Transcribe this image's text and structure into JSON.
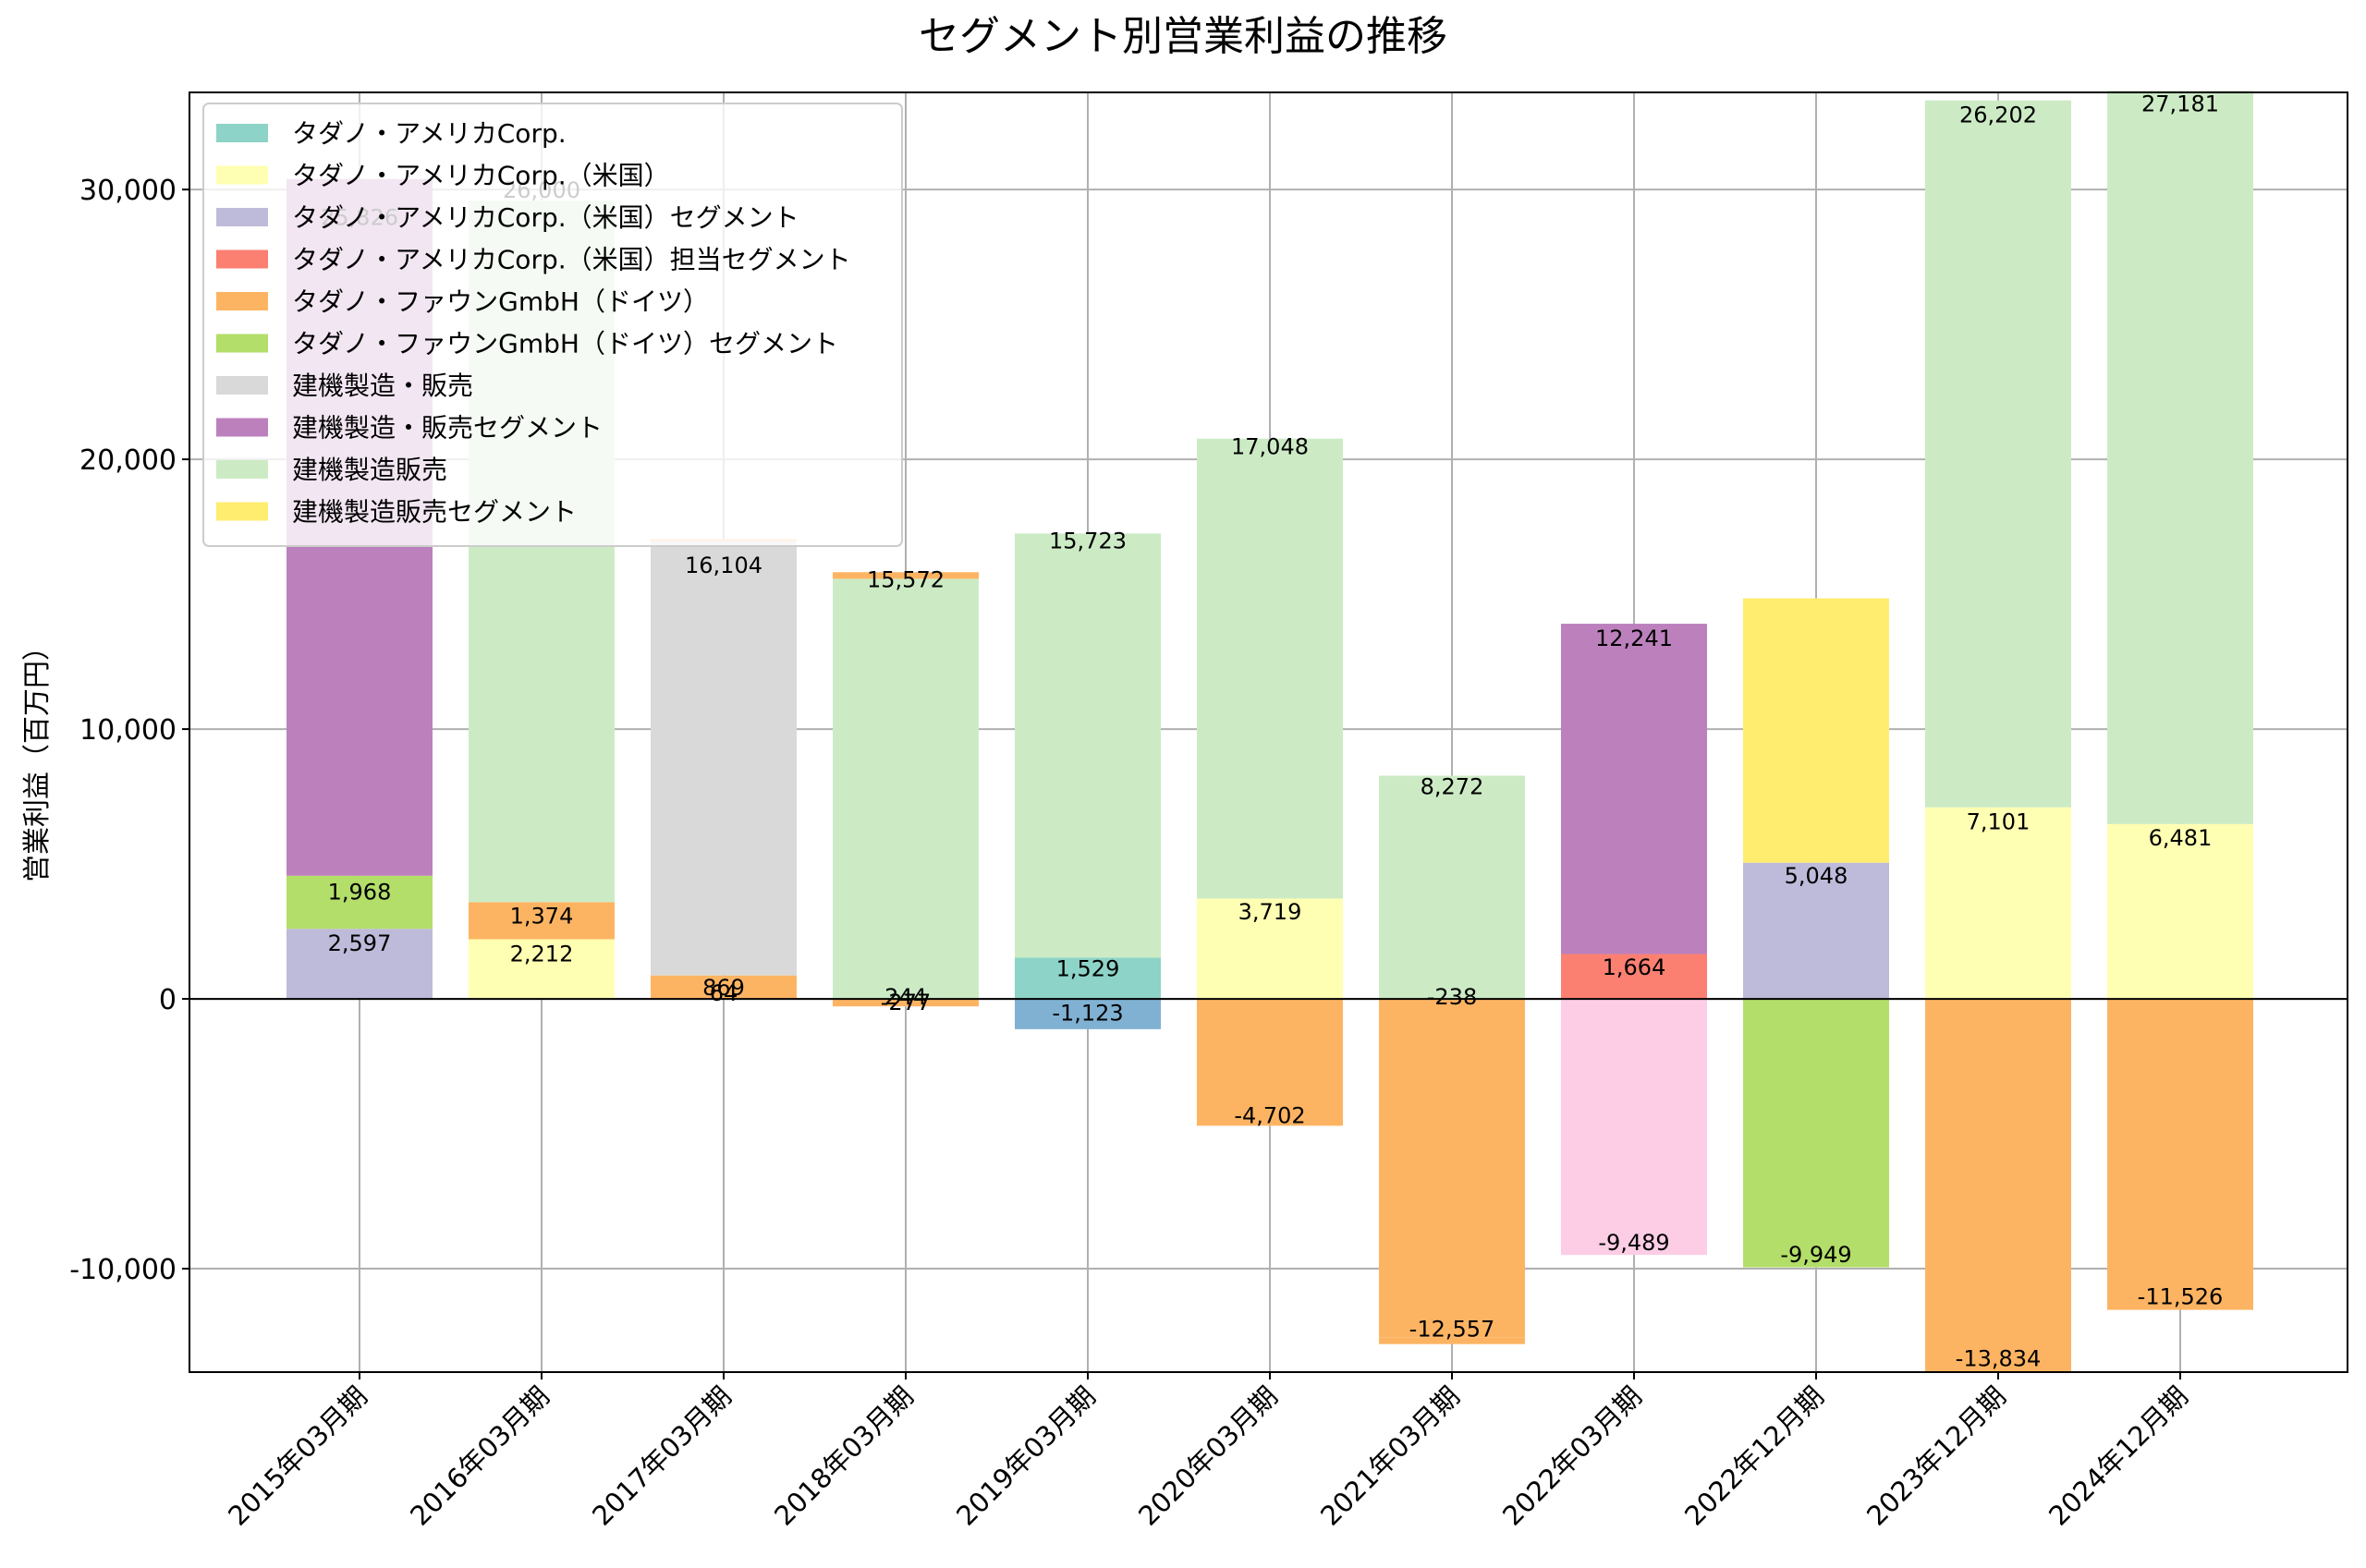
{
  "chart_data": {
    "type": "bar",
    "stacked": true,
    "title": "セグメント別営業利益の推移",
    "xlabel": "",
    "ylabel": "営業利益（百万円）",
    "ylim": [
      -13834,
      33600
    ],
    "yticks": [
      -10000,
      0,
      10000,
      20000,
      30000
    ],
    "ytick_labels": [
      "-10,000",
      "0",
      "10,000",
      "20,000",
      "30,000"
    ],
    "grid": true,
    "legend_position": "top-left",
    "categories": [
      "2015年03月期",
      "2016年03月期",
      "2017年03月期",
      "2018年03月期",
      "2019年03月期",
      "2020年03月期",
      "2021年03月期",
      "2022年03月期",
      "2022年12月期",
      "2023年12月期",
      "2024年12月期"
    ],
    "series": [
      {
        "name": "タダノ・アメリカCorp.",
        "color": "#8dd3c7",
        "values": [
          null,
          null,
          null,
          null,
          1529,
          null,
          null,
          null,
          null,
          null,
          null
        ]
      },
      {
        "name": "タダノ・アメリカCorp.（米国）",
        "color": "#ffffb3",
        "values": [
          null,
          2212,
          null,
          null,
          null,
          3719,
          null,
          null,
          null,
          7101,
          6481
        ]
      },
      {
        "name": "タダノ・アメリカCorp.（米国）セグメント",
        "color": "#bebada",
        "values": [
          2597,
          null,
          null,
          null,
          null,
          null,
          null,
          null,
          5048,
          null,
          null
        ]
      },
      {
        "name": "タダノ・アメリカCorp.（米国）担当セグメント",
        "color": "#fb8072",
        "values": [
          null,
          null,
          null,
          null,
          null,
          null,
          null,
          1664,
          null,
          null,
          null
        ]
      },
      {
        "name": "タダノ・ファウンGmbH（ドイツ）",
        "color": "#fdb462",
        "values": [
          null,
          1374,
          869,
          -277,
          null,
          -4702,
          -12557,
          null,
          null,
          -13834,
          -11526
        ]
      },
      {
        "name": "タダノ・ファウンGmbH（ドイツ）セグメント",
        "color": "#b3de69",
        "values": [
          1968,
          null,
          null,
          null,
          null,
          null,
          null,
          null,
          -9949,
          null,
          null
        ]
      },
      {
        "name": "建機製造・販売",
        "color": "#d9d9d9",
        "values": [
          null,
          null,
          16104,
          null,
          null,
          null,
          null,
          null,
          null,
          null,
          null
        ]
      },
      {
        "name": "建機製造・販売セグメント",
        "color": "#bc80bd",
        "values": [
          25826,
          null,
          null,
          null,
          null,
          null,
          null,
          12241,
          null,
          null,
          null
        ]
      },
      {
        "name": "建機製造販売",
        "color": "#ccebc5",
        "values": [
          null,
          26000,
          null,
          15572,
          15723,
          17048,
          8272,
          null,
          null,
          26202,
          27181
        ]
      },
      {
        "name": "建機製造販売セグメント",
        "color": "#ffed6f",
        "values": [
          null,
          null,
          null,
          null,
          null,
          null,
          null,
          null,
          9800,
          null,
          null
        ]
      },
      {
        "name": "",
        "color": "#80b1d3",
        "values": [
          null,
          null,
          null,
          null,
          -1123,
          null,
          null,
          null,
          null,
          null,
          null
        ]
      },
      {
        "name": "",
        "color": "#fccde5",
        "values": [
          null,
          null,
          null,
          null,
          null,
          null,
          null,
          -9489,
          null,
          null,
          null
        ]
      },
      {
        "name": "",
        "color": "#fdb462",
        "values": [
          null,
          null,
          64,
          244,
          null,
          null,
          -238,
          null,
          null,
          null,
          null
        ]
      }
    ],
    "data_labels": [
      {
        "category_index": 0,
        "text": "25,826",
        "y": 29000
      },
      {
        "category_index": 0,
        "text": "1,968",
        "y": 4000
      },
      {
        "category_index": 0,
        "text": "2,597",
        "y": 2100
      },
      {
        "category_index": 1,
        "text": "26,000",
        "y": 30000
      },
      {
        "category_index": 1,
        "text": "1,374",
        "y": 3100
      },
      {
        "category_index": 1,
        "text": "2,212",
        "y": 1700
      },
      {
        "category_index": 2,
        "text": "16,104",
        "y": 16104
      },
      {
        "category_index": 2,
        "text": "869",
        "y": 450
      },
      {
        "category_index": 2,
        "text": "64",
        "y": 250
      },
      {
        "category_index": 3,
        "text": "15,572",
        "y": 15572
      },
      {
        "category_index": 3,
        "text": "244",
        "y": 100
      },
      {
        "category_index": 3,
        "text": "-277",
        "y": -100
      },
      {
        "category_index": 4,
        "text": "15,723",
        "y": 17000
      },
      {
        "category_index": 4,
        "text": "1,529",
        "y": 1150
      },
      {
        "category_index": 4,
        "text": "-1,123",
        "y": -500
      },
      {
        "category_index": 5,
        "text": "17,048",
        "y": 20500
      },
      {
        "category_index": 5,
        "text": "3,719",
        "y": 3250
      },
      {
        "category_index": 5,
        "text": "-4,702",
        "y": -4300
      },
      {
        "category_index": 6,
        "text": "8,272",
        "y": 7900
      },
      {
        "category_index": 6,
        "text": "-238",
        "y": 100
      },
      {
        "category_index": 6,
        "text": "-12,557",
        "y": -12200
      },
      {
        "category_index": 7,
        "text": "12,241",
        "y": 13400
      },
      {
        "category_index": 7,
        "text": "1,664",
        "y": 1200
      },
      {
        "category_index": 7,
        "text": "-9,489",
        "y": -9000
      },
      {
        "category_index": 8,
        "text": "5,048",
        "y": 4600
      },
      {
        "category_index": 8,
        "text": "-9,949",
        "y": -9450
      },
      {
        "category_index": 9,
        "text": "26,202",
        "y": 32800
      },
      {
        "category_index": 9,
        "text": "7,101",
        "y": 6600
      },
      {
        "category_index": 9,
        "text": "-13,834",
        "y": -13300
      },
      {
        "category_index": 10,
        "text": "27,181",
        "y": 33200
      },
      {
        "category_index": 10,
        "text": "6,481",
        "y": 6000
      },
      {
        "category_index": 10,
        "text": "-11,526",
        "y": -11000
      }
    ]
  }
}
